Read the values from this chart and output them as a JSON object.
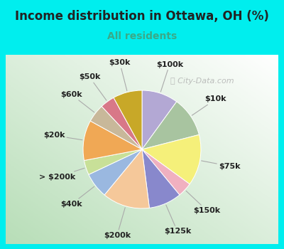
{
  "title": "Income distribution in Ottawa, OH (%)",
  "subtitle": "All residents",
  "title_color": "#222222",
  "subtitle_color": "#3aaa88",
  "bg_cyan": "#00eeee",
  "bg_chart_topleft": "#ffffff",
  "bg_chart_bottomright": "#b8ddb8",
  "watermark": "City-Data.com",
  "labels": [
    "$100k",
    "$10k",
    "$75k",
    "$150k",
    "$125k",
    "$200k",
    "$40k",
    "> $200k",
    "$20k",
    "$60k",
    "$50k",
    "$30k"
  ],
  "values": [
    10,
    11,
    14,
    4,
    9,
    13,
    7,
    4,
    11,
    5,
    4,
    8
  ],
  "colors": [
    "#b3a8d4",
    "#a8c4a0",
    "#f5f07a",
    "#f0b0c0",
    "#8888cc",
    "#f5c89a",
    "#9ab8e0",
    "#c8e098",
    "#f0a855",
    "#c8b89a",
    "#d87888",
    "#c8a828"
  ],
  "start_angle": 90,
  "figsize": [
    4.0,
    3.5
  ],
  "dpi": 100,
  "title_fontsize": 12,
  "subtitle_fontsize": 10,
  "label_fontsize": 8
}
